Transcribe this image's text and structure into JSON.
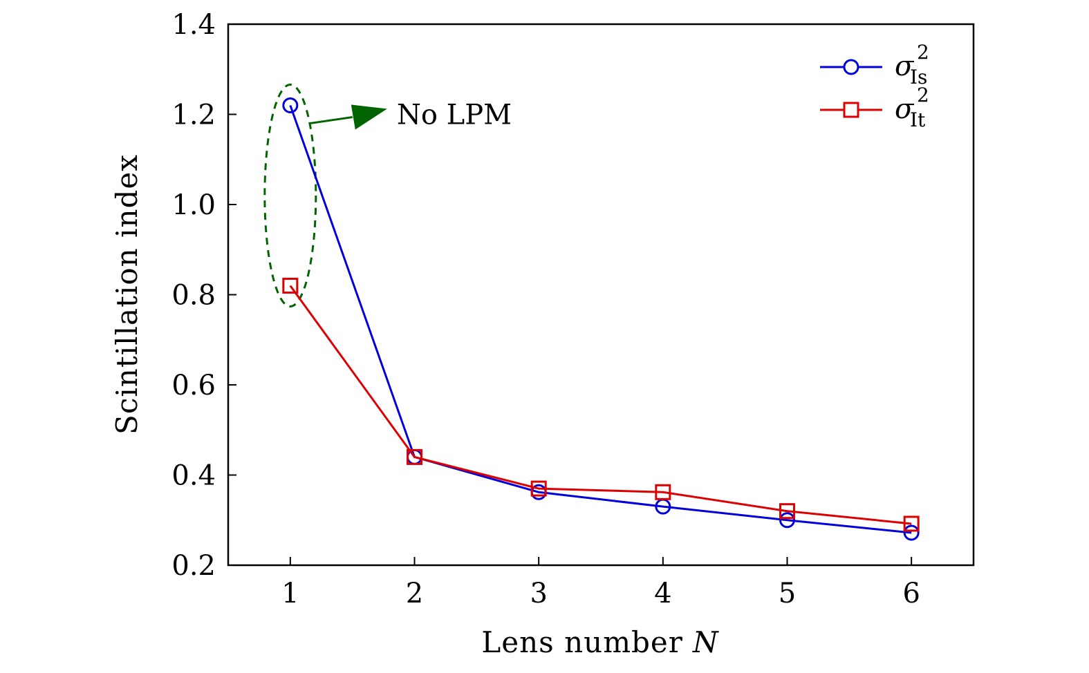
{
  "chart_data": {
    "type": "line",
    "title": "",
    "xlabel": "Lens number",
    "xlabel_var": "N",
    "ylabel": "Scintillation index",
    "xlim": [
      0.5,
      6.5
    ],
    "ylim": [
      0.2,
      1.4
    ],
    "x_ticks": [
      "1",
      "2",
      "3",
      "4",
      "5",
      "6"
    ],
    "y_ticks": [
      "0.2",
      "0.4",
      "0.6",
      "0.8",
      "1.0",
      "1.2",
      "1.4"
    ],
    "x": [
      1,
      2,
      3,
      4,
      5,
      6
    ],
    "grid": false,
    "legend_position": "top-right",
    "series": [
      {
        "name": "σ",
        "name_sup": "2",
        "name_sub": "Is",
        "color": "#0000dd",
        "marker": "circle",
        "values": [
          1.22,
          0.44,
          0.362,
          0.33,
          0.3,
          0.272
        ]
      },
      {
        "name": "σ",
        "name_sup": "2",
        "name_sub": "It",
        "color": "#dd0000",
        "marker": "square",
        "values": [
          0.82,
          0.44,
          0.37,
          0.362,
          0.32,
          0.292
        ]
      }
    ],
    "annotations": [
      {
        "text": "No LPM",
        "target_x": 1,
        "color": "#006400"
      }
    ]
  }
}
